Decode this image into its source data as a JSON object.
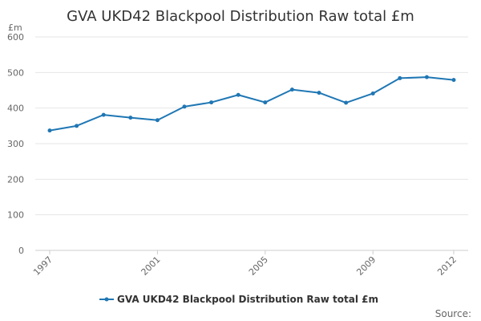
{
  "chart_data": {
    "type": "line",
    "title": "GVA UKD42 Blackpool Distribution Raw total £m",
    "unit_label": "£m",
    "x_tick_labels": [
      "1997",
      "2001",
      "2005",
      "2009",
      "2012"
    ],
    "y_tick_labels": [
      "0",
      "100",
      "200",
      "300",
      "400",
      "500",
      "600"
    ],
    "ylim": [
      0,
      600
    ],
    "xlim": [
      1997,
      2012
    ],
    "grid": true,
    "legend": "bottom",
    "x": [
      1997,
      1998,
      1999,
      2000,
      2001,
      2002,
      2003,
      2004,
      2005,
      2006,
      2007,
      2008,
      2009,
      2010,
      2011,
      2012
    ],
    "series": [
      {
        "name": "GVA UKD42 Blackpool Distribution Raw total £m",
        "color": "#1f77b4",
        "values": [
          337,
          350,
          381,
          373,
          366,
          404,
          416,
          437,
          416,
          452,
          443,
          415,
          441,
          484,
          487,
          479
        ]
      }
    ],
    "source_label": "Source:"
  }
}
